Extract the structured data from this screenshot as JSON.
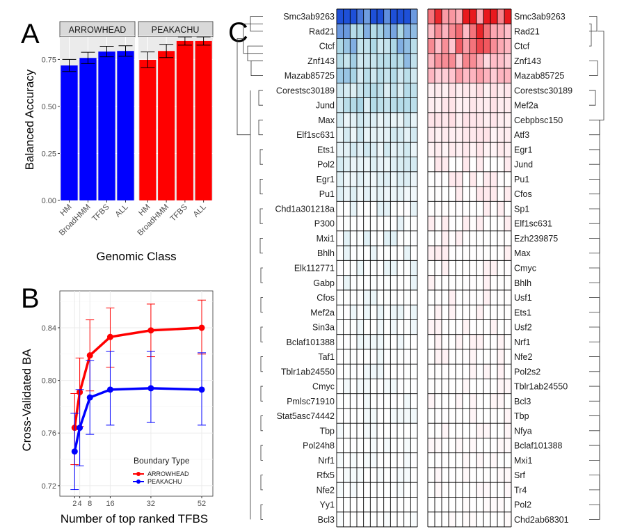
{
  "panel_labels": {
    "a": "A",
    "b": "B",
    "c": "C"
  },
  "chart_data": [
    {
      "type": "bar",
      "panel": "A",
      "facets": [
        {
          "name": "ARROWHEAD",
          "color": "#0000ff",
          "categories": [
            "HM",
            "BroadHMM",
            "TFBS",
            "ALL"
          ],
          "values": [
            0.718,
            0.758,
            0.792,
            0.795
          ],
          "errors": [
            0.032,
            0.03,
            0.028,
            0.028
          ]
        },
        {
          "name": "PEAKACHU",
          "color": "#ff0000",
          "categories": [
            "HM",
            "BroadHMM",
            "TFBS",
            "ALL"
          ],
          "values": [
            0.748,
            0.795,
            0.848,
            0.848
          ],
          "errors": [
            0.042,
            0.035,
            0.022,
            0.022
          ]
        }
      ],
      "xlabel": "Genomic Class",
      "ylabel": "Balanced Accuracy",
      "ylim": [
        0,
        0.87
      ],
      "yticks": [
        "0.00",
        "0.25",
        "0.50",
        "0.75"
      ]
    },
    {
      "type": "line",
      "panel": "B",
      "x": [
        2,
        4,
        8,
        16,
        32,
        52
      ],
      "xticks": [
        "2",
        "4",
        "8",
        "16",
        "32",
        "52"
      ],
      "series": [
        {
          "name": "ARROWHEAD",
          "color": "#ff0000",
          "values": [
            0.764,
            0.791,
            0.819,
            0.833,
            0.838,
            0.84
          ],
          "lower": [
            0.736,
            0.765,
            0.792,
            0.81,
            0.818,
            0.82
          ],
          "upper": [
            0.79,
            0.817,
            0.846,
            0.855,
            0.858,
            0.861
          ]
        },
        {
          "name": "PEAKACHU",
          "color": "#0000ff",
          "values": [
            0.746,
            0.764,
            0.787,
            0.793,
            0.794,
            0.793
          ],
          "lower": [
            0.717,
            0.735,
            0.759,
            0.766,
            0.768,
            0.766
          ],
          "upper": [
            0.775,
            0.793,
            0.815,
            0.822,
            0.822,
            0.821
          ]
        }
      ],
      "xlabel": "Number of top ranked TFBS",
      "ylabel": "Cross-Validated BA",
      "ylim": [
        0.712,
        0.868
      ],
      "yticks": [
        "0.72",
        "0.76",
        "0.80",
        "0.84"
      ],
      "legend_title": "Boundary Type",
      "legend_position": "bottom-right"
    },
    {
      "type": "heatmap",
      "panel": "C",
      "left": {
        "rows": [
          "Smc3ab9263",
          "Rad21",
          "Ctcf",
          "Znf143",
          "Mazab85725",
          "Corestsc30189",
          "Jund",
          "Max",
          "Elf1sc631",
          "Ets1",
          "Pol2",
          "Egr1",
          "Pu1",
          "Chd1a301218a",
          "P300",
          "Mxi1",
          "Bhlh",
          "Elk112771",
          "Gabp",
          "Cfos",
          "Mef2a",
          "Sin3a",
          "Bclaf101388",
          "Taf1",
          "Tblr1ab24550",
          "Cmyc",
          "Pmlsc71910",
          "Stat5asc74442",
          "Tbp",
          "Pol24h8",
          "Nrf1",
          "Rfx5",
          "Nfe2",
          "Yy1",
          "Bcl3"
        ],
        "intensity": [
          0.75,
          0.45,
          0.38,
          0.33,
          0.3,
          0.22,
          0.25,
          0.16,
          0.15,
          0.14,
          0.13,
          0.12,
          0.1,
          0.09,
          0.08,
          0.09,
          0.07,
          0.07,
          0.07,
          0.06,
          0.06,
          0.05,
          0.05,
          0.05,
          0.05,
          0.04,
          0.04,
          0.04,
          0.03,
          0.03,
          0.03,
          0.03,
          0.03,
          0.02,
          0.02
        ],
        "color_low": "#ffffff",
        "color_mid": "#add8e6",
        "color_high": "#1e50d8"
      },
      "right": {
        "rows": [
          "Smc3ab9263",
          "Rad21",
          "Ctcf",
          "Znf143",
          "Mazab85725",
          "Corestsc30189",
          "Mef2a",
          "Cebpbsc150",
          "Atf3",
          "Egr1",
          "Jund",
          "Pu1",
          "Cfos",
          "Sp1",
          "Elf1sc631",
          "Ezh239875",
          "Max",
          "Cmyc",
          "Bhlh",
          "Usf1",
          "Ets1",
          "Usf2",
          "Nrf1",
          "Nfe2",
          "Pol2s2",
          "Tblr1ab24550",
          "Bcl3",
          "Tbp",
          "Nfya",
          "Bclaf101388",
          "Mxi1",
          "Srf",
          "Tr4",
          "Pol2",
          "Chd2ab68301"
        ],
        "intensity": [
          0.75,
          0.6,
          0.55,
          0.38,
          0.32,
          0.14,
          0.12,
          0.12,
          0.11,
          0.1,
          0.09,
          0.09,
          0.09,
          0.08,
          0.08,
          0.07,
          0.07,
          0.06,
          0.06,
          0.06,
          0.05,
          0.05,
          0.05,
          0.05,
          0.05,
          0.04,
          0.04,
          0.04,
          0.04,
          0.03,
          0.03,
          0.03,
          0.03,
          0.02,
          0.02
        ],
        "color_low": "#ffffff",
        "color_mid": "#ffc0cb",
        "color_high": "#e8191e"
      },
      "columns": 12
    }
  ]
}
